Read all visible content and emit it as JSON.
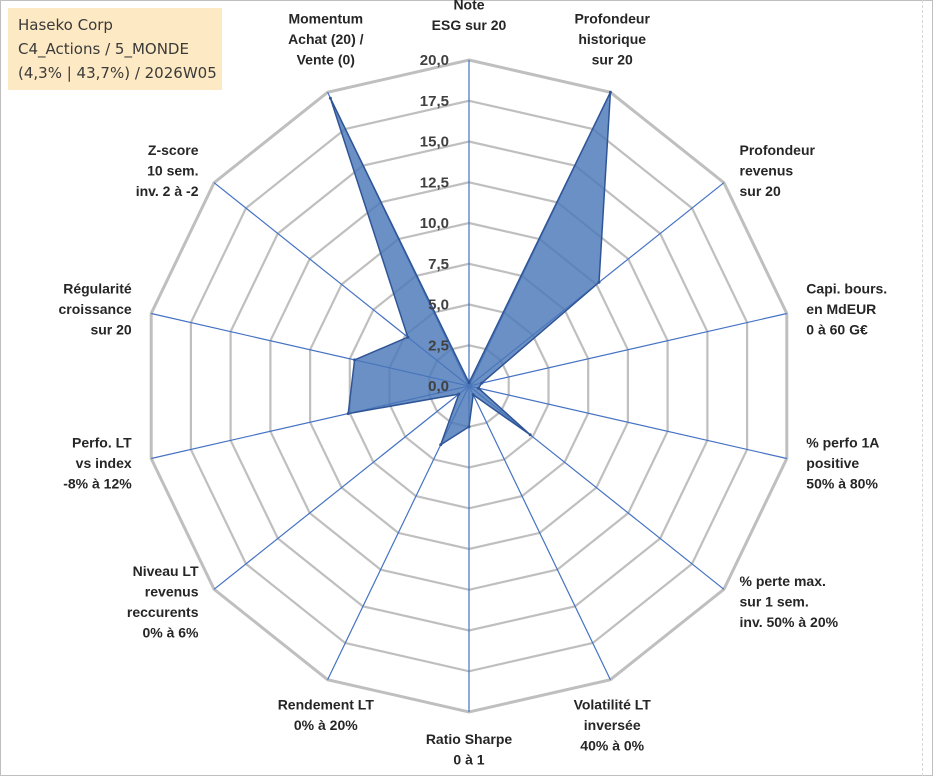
{
  "header": {
    "company": "Haseko Corp",
    "portfolio": "C4_Actions / 5_MONDE",
    "stats": "(4,3% | 43,7%) / 2026W05"
  },
  "colors": {
    "fill": "#4a78b8",
    "stroke": "#2f5597",
    "axis": "#4472c4",
    "grid": "#bfbfbf",
    "header_bg": "#fde9c3"
  },
  "chart_data": {
    "type": "radar",
    "title": "",
    "rmin": 0,
    "rmax": 20,
    "tick_step": 2.5,
    "tick_labels": [
      "0,0",
      "2,5",
      "5,0",
      "7,5",
      "10,0",
      "12,5",
      "15,0",
      "17,5",
      "20,0"
    ],
    "axes": [
      [
        "Note",
        "ESG sur 20"
      ],
      [
        "Profondeur",
        "historique",
        "sur 20"
      ],
      [
        "Profondeur",
        "revenus",
        "sur 20"
      ],
      [
        "Capi. bours.",
        "en MdEUR",
        "0 à 60 G€"
      ],
      [
        "% perfo 1A",
        "positive",
        "50% à 80%"
      ],
      [
        "% perte max.",
        "sur 1 sem.",
        "inv. 50% à 20%"
      ],
      [
        "Volatilité LT",
        "inversée",
        "40% à 0%"
      ],
      [
        "Ratio Sharpe",
        "0 à 1"
      ],
      [
        "Rendement LT",
        "0% à 20%"
      ],
      [
        "Niveau LT",
        "revenus",
        "reccurents",
        "0% à 6%"
      ],
      [
        "Perfo. LT",
        "vs index",
        "-8% à 12%"
      ],
      [
        "Régularité",
        "croissance",
        "sur 20"
      ],
      [
        "Z-score",
        "10 sem.",
        "inv. 2 à -2"
      ],
      [
        "Momentum",
        "Achat (20) /",
        "Vente (0)"
      ]
    ],
    "series": [
      {
        "name": "Haseko Corp",
        "values": [
          0.2,
          20.0,
          10.2,
          0.8,
          0.6,
          4.8,
          0.6,
          2.5,
          4.0,
          0.8,
          7.6,
          7.2,
          4.8,
          19.6
        ]
      }
    ]
  }
}
